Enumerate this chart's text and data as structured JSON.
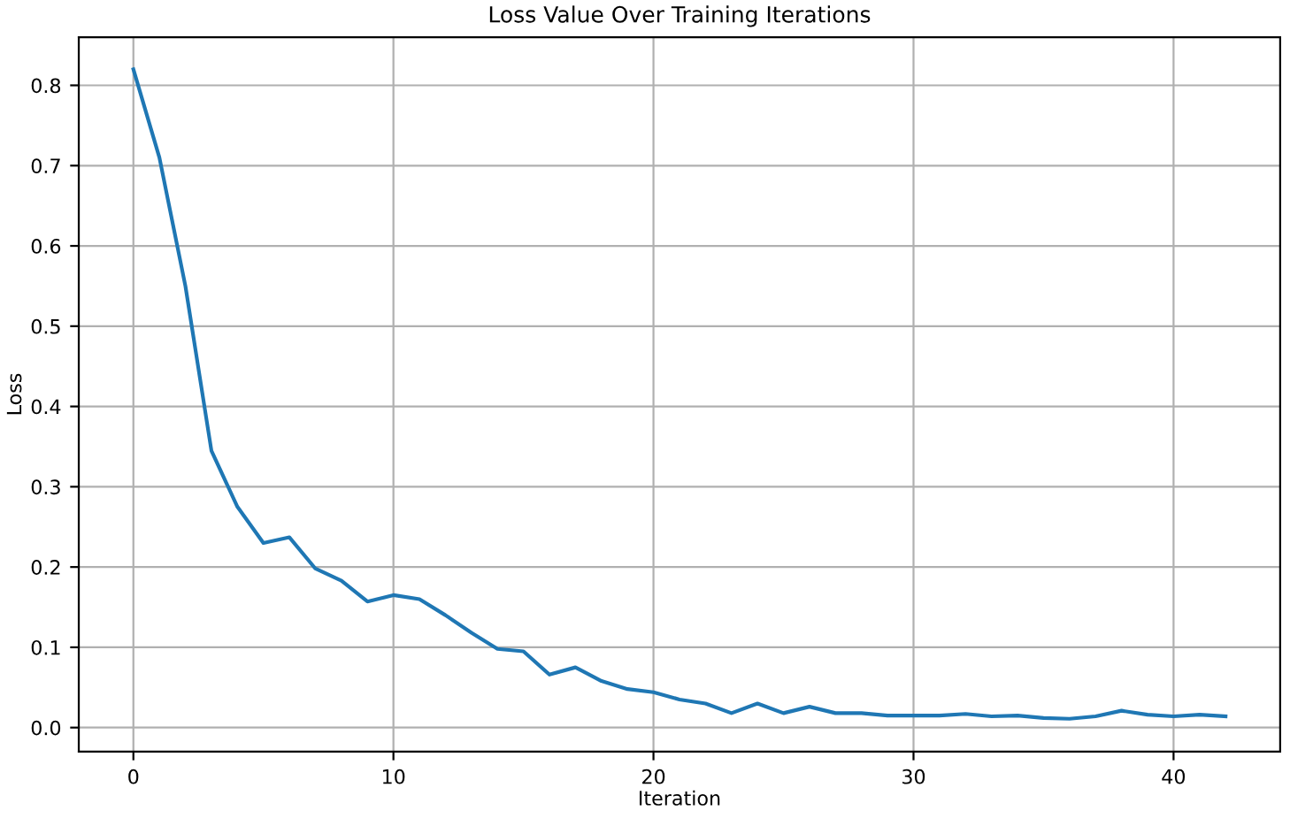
{
  "chart_data": {
    "type": "line",
    "title": "Loss Value Over Training Iterations",
    "xlabel": "Iteration",
    "ylabel": "Loss",
    "x": [
      0,
      1,
      2,
      3,
      4,
      5,
      6,
      7,
      8,
      9,
      10,
      11,
      12,
      13,
      14,
      15,
      16,
      17,
      18,
      19,
      20,
      21,
      22,
      23,
      24,
      25,
      26,
      27,
      28,
      29,
      30,
      31,
      32,
      33,
      34,
      35,
      36,
      37,
      38,
      39,
      40,
      41,
      42
    ],
    "series": [
      {
        "color": "#1f77b4",
        "values": [
          0.82,
          0.71,
          0.55,
          0.345,
          0.275,
          0.23,
          0.237,
          0.198,
          0.183,
          0.157,
          0.165,
          0.16,
          0.14,
          0.118,
          0.098,
          0.095,
          0.066,
          0.075,
          0.058,
          0.048,
          0.044,
          0.035,
          0.03,
          0.018,
          0.03,
          0.018,
          0.026,
          0.018,
          0.018,
          0.015,
          0.015,
          0.015,
          0.017,
          0.014,
          0.015,
          0.012,
          0.011,
          0.014,
          0.021,
          0.016,
          0.014,
          0.016,
          0.014
        ]
      }
    ],
    "xlim": [
      -2.1,
      44.1
    ],
    "ylim": [
      -0.03,
      0.86
    ],
    "xticks": [
      0,
      10,
      20,
      30,
      40
    ],
    "yticks": [
      {
        "value": 0,
        "label": "0.0"
      },
      0.1,
      0.2,
      0.3,
      0.4,
      0.5,
      0.6,
      0.7,
      0.8
    ],
    "grid": true,
    "marker": "none",
    "line_style": "solid"
  }
}
